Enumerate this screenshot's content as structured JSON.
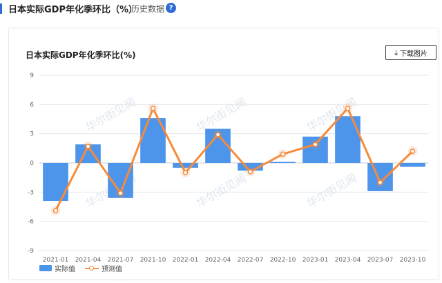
{
  "header": {
    "title": "日本实际GDP年化季环比（%）",
    "history_label": "历史数据",
    "help_label": "?"
  },
  "chart_header": {
    "title": "日本实际GDP年化季环比(%)",
    "download_label": "下载图片"
  },
  "watermark": "华尔街见闻",
  "colors": {
    "bar": "#4d94eb",
    "line": "#f58b3b",
    "accent": "#2f6bd6"
  },
  "chart_data": {
    "type": "bar",
    "title": "日本实际GDP年化季环比(%)",
    "xlabel": "",
    "ylabel": "",
    "ylim": [
      -9,
      9
    ],
    "yticks": [
      9,
      6,
      3,
      0,
      -3,
      -6,
      -9
    ],
    "categories": [
      "2021-01",
      "2021-04",
      "2021-07",
      "2021-10",
      "2022-01",
      "2022-04",
      "2022-07",
      "2022-10",
      "2023-01",
      "2023-04",
      "2023-07",
      "2023-10"
    ],
    "series": [
      {
        "name": "实际值",
        "type": "bar",
        "values": [
          -3.9,
          1.9,
          -3.6,
          4.6,
          -0.5,
          3.5,
          -0.8,
          0.1,
          2.7,
          4.8,
          -2.9,
          -0.4
        ]
      },
      {
        "name": "预测值",
        "type": "line",
        "values": [
          -4.9,
          1.7,
          -3.1,
          5.6,
          -1.0,
          2.9,
          -0.9,
          0.9,
          1.9,
          5.6,
          -2.0,
          1.2
        ]
      }
    ],
    "grid": true,
    "legend": "bottom-left"
  }
}
